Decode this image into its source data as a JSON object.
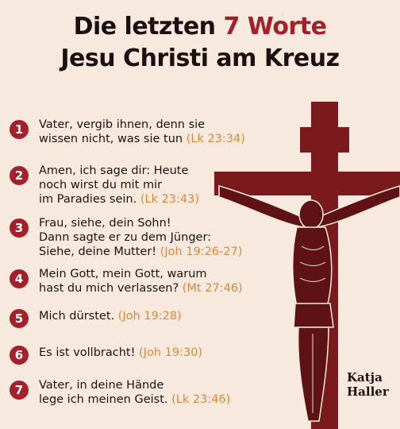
{
  "title": {
    "line1_pre": "Die letzten",
    "line1_accent": "7 Worte",
    "line2": "Jesu Christi am Kreuz"
  },
  "items": [
    {
      "number": "1",
      "lines": [
        "Vater, vergib ihnen, denn sie",
        "wissen nicht, was sie tun"
      ],
      "ref": "(Lk 23:34)"
    },
    {
      "number": "2",
      "lines": [
        "Amen, ich sage dir: Heute",
        "noch wirst du mit mir",
        "im Paradies sein."
      ],
      "ref": "(Lk 23:43)"
    },
    {
      "number": "3",
      "lines": [
        "Frau, siehe, dein Sohn!",
        "Dann sagte er zu dem Jünger:",
        "Siehe, deine Mutter!"
      ],
      "ref": "(Joh 19:26-27)"
    },
    {
      "number": "4",
      "lines": [
        "Mein Gott, mein Gott, warum",
        "hast du mich verlassen?"
      ],
      "ref": "(Mt 27:46)"
    },
    {
      "number": "5",
      "lines": [
        "Mich dürstet."
      ],
      "ref": "(Joh 19:28)"
    },
    {
      "number": "6",
      "lines": [
        "Es ist vollbracht!"
      ],
      "ref": "(Joh 19:30)"
    },
    {
      "number": "7",
      "lines": [
        "Vater, in deine Hände",
        "lege ich meinen Geist."
      ],
      "ref": "(Lk 23:46)"
    }
  ],
  "signature": {
    "line1": "Katja",
    "line2": "Haller"
  },
  "colors": {
    "accent": "#a3212a",
    "reference": "#d88a3c",
    "background": "#f7e9dd",
    "cross": "#7a1a1c"
  }
}
